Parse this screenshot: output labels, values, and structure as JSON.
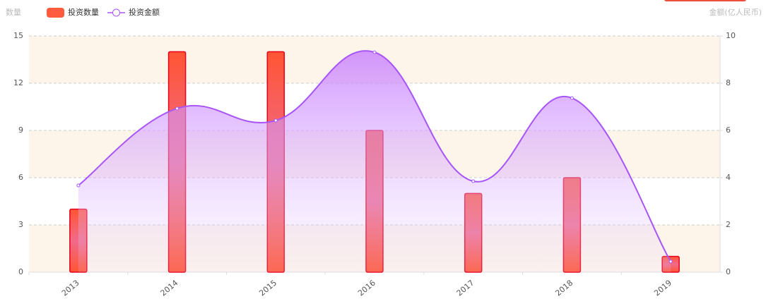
{
  "chart_data": {
    "type": "bar-line",
    "categories": [
      "2013",
      "2014",
      "2015",
      "2016",
      "2017",
      "2018",
      "2019"
    ],
    "y_axis_label": "数量",
    "y2_axis_label": "金额(亿人民币)",
    "series": [
      {
        "name": "投资数量",
        "type": "bar",
        "color": "#ff5b3f",
        "values": [
          4,
          14,
          14,
          9,
          5,
          6,
          1
        ]
      },
      {
        "name": "投资金额",
        "type": "line",
        "axis": "y2",
        "color": "#a855f7",
        "values": [
          3.67,
          6.93,
          6.42,
          9.31,
          3.85,
          7.37,
          0.45
        ]
      }
    ],
    "ylim": [
      0,
      15
    ],
    "yticks": [
      0,
      3,
      6,
      9,
      12,
      15
    ],
    "y2lim": [
      0,
      10
    ],
    "y2ticks": [
      0,
      2,
      4,
      6,
      8,
      10
    ],
    "grid": true
  }
}
